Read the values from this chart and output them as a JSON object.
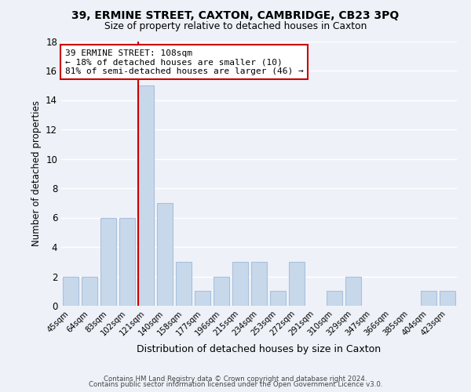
{
  "title": "39, ERMINE STREET, CAXTON, CAMBRIDGE, CB23 3PQ",
  "subtitle": "Size of property relative to detached houses in Caxton",
  "xlabel": "Distribution of detached houses by size in Caxton",
  "ylabel": "Number of detached properties",
  "bar_labels": [
    "45sqm",
    "64sqm",
    "83sqm",
    "102sqm",
    "121sqm",
    "140sqm",
    "158sqm",
    "177sqm",
    "196sqm",
    "215sqm",
    "234sqm",
    "253sqm",
    "272sqm",
    "291sqm",
    "310sqm",
    "329sqm",
    "347sqm",
    "366sqm",
    "385sqm",
    "404sqm",
    "423sqm"
  ],
  "bar_values": [
    2,
    2,
    6,
    6,
    15,
    7,
    3,
    1,
    2,
    3,
    3,
    1,
    3,
    0,
    1,
    2,
    0,
    0,
    0,
    1,
    1
  ],
  "bar_color": "#c8d8eb",
  "bar_edge_color": "#a8c0dc",
  "property_line_color": "#cc0000",
  "ylim": [
    0,
    18
  ],
  "yticks": [
    0,
    2,
    4,
    6,
    8,
    10,
    12,
    14,
    16,
    18
  ],
  "annotation_line1": "39 ERMINE STREET: 108sqm",
  "annotation_line2": "← 18% of detached houses are smaller (10)",
  "annotation_line3": "81% of semi-detached houses are larger (46) →",
  "annotation_box_color": "#ffffff",
  "annotation_box_edge": "#cc0000",
  "footer_line1": "Contains HM Land Registry data © Crown copyright and database right 2024.",
  "footer_line2": "Contains public sector information licensed under the Open Government Licence v3.0.",
  "background_color": "#eef2f8",
  "grid_color": "#ffffff"
}
